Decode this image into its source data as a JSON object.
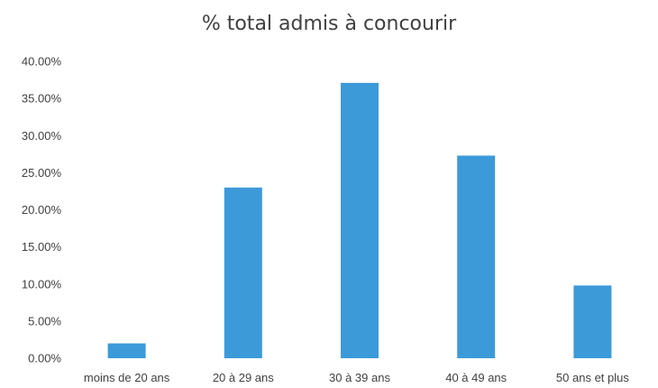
{
  "chart_data": {
    "type": "bar",
    "title": "% total admis à concourir",
    "xlabel": "",
    "ylabel": "",
    "categories": [
      "moins de 20 ans",
      "20 à 29 ans",
      "30 à 39 ans",
      "40 à 49 ans",
      "50 ans et plus"
    ],
    "values": [
      2.0,
      23.0,
      37.1,
      27.3,
      9.8
    ],
    "ylim": [
      0,
      40
    ],
    "y_ticks": [
      0,
      5,
      10,
      15,
      20,
      25,
      30,
      35,
      40
    ],
    "y_tick_labels": [
      "0.00%",
      "5.00%",
      "10.00%",
      "15.00%",
      "20.00%",
      "25.00%",
      "30.00%",
      "35.00%",
      "40.00%"
    ],
    "grid": false,
    "legend": "none",
    "bar_color": "#3C9AD9"
  }
}
